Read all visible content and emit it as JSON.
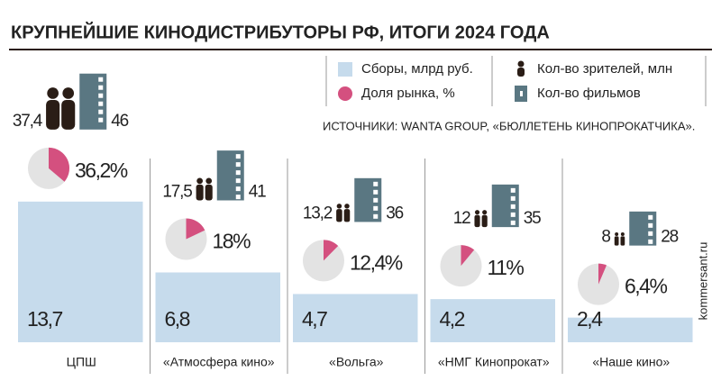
{
  "chart_data": {
    "type": "bar",
    "title": "КРУПНЕЙШИЕ КИНОДИСТРИБУТОРЫ РФ, ИТОГИ 2024 ГОДА",
    "categories": [
      "ЦПШ",
      "«Атмосфера кино»",
      "«Вольга»",
      "«НМГ Кинопрокат»",
      "«Наше кино»"
    ],
    "series": [
      {
        "name": "Сборы, млрд руб.",
        "color": "#c6dbec",
        "values": [
          13.7,
          6.8,
          4.7,
          4.2,
          2.4
        ],
        "value_labels": [
          "13,7",
          "6,8",
          "4,7",
          "4,2",
          "2,4"
        ]
      },
      {
        "name": "Доля рынка, %",
        "color": "#d4507f",
        "values": [
          36.2,
          18,
          12.4,
          11,
          6.4
        ],
        "value_labels": [
          "36,2%",
          "18%",
          "12,4%",
          "11%",
          "6,4%"
        ]
      },
      {
        "name": "Кол-во зрителей, млн",
        "color": "#2a1d16",
        "values": [
          37.4,
          17.5,
          13.2,
          12,
          8
        ],
        "value_labels": [
          "37,4",
          "17,5",
          "13,2",
          "12",
          "8"
        ]
      },
      {
        "name": "Кол-во фильмов",
        "color": "#5a7782",
        "values": [
          46,
          41,
          36,
          35,
          28
        ]
      }
    ],
    "source": "ИСТОЧНИКИ: WANTA GROUP, «БЮЛЛЕТЕНЬ КИНОПРОКАТЧИКА».",
    "credit": "kommersant.ru"
  }
}
